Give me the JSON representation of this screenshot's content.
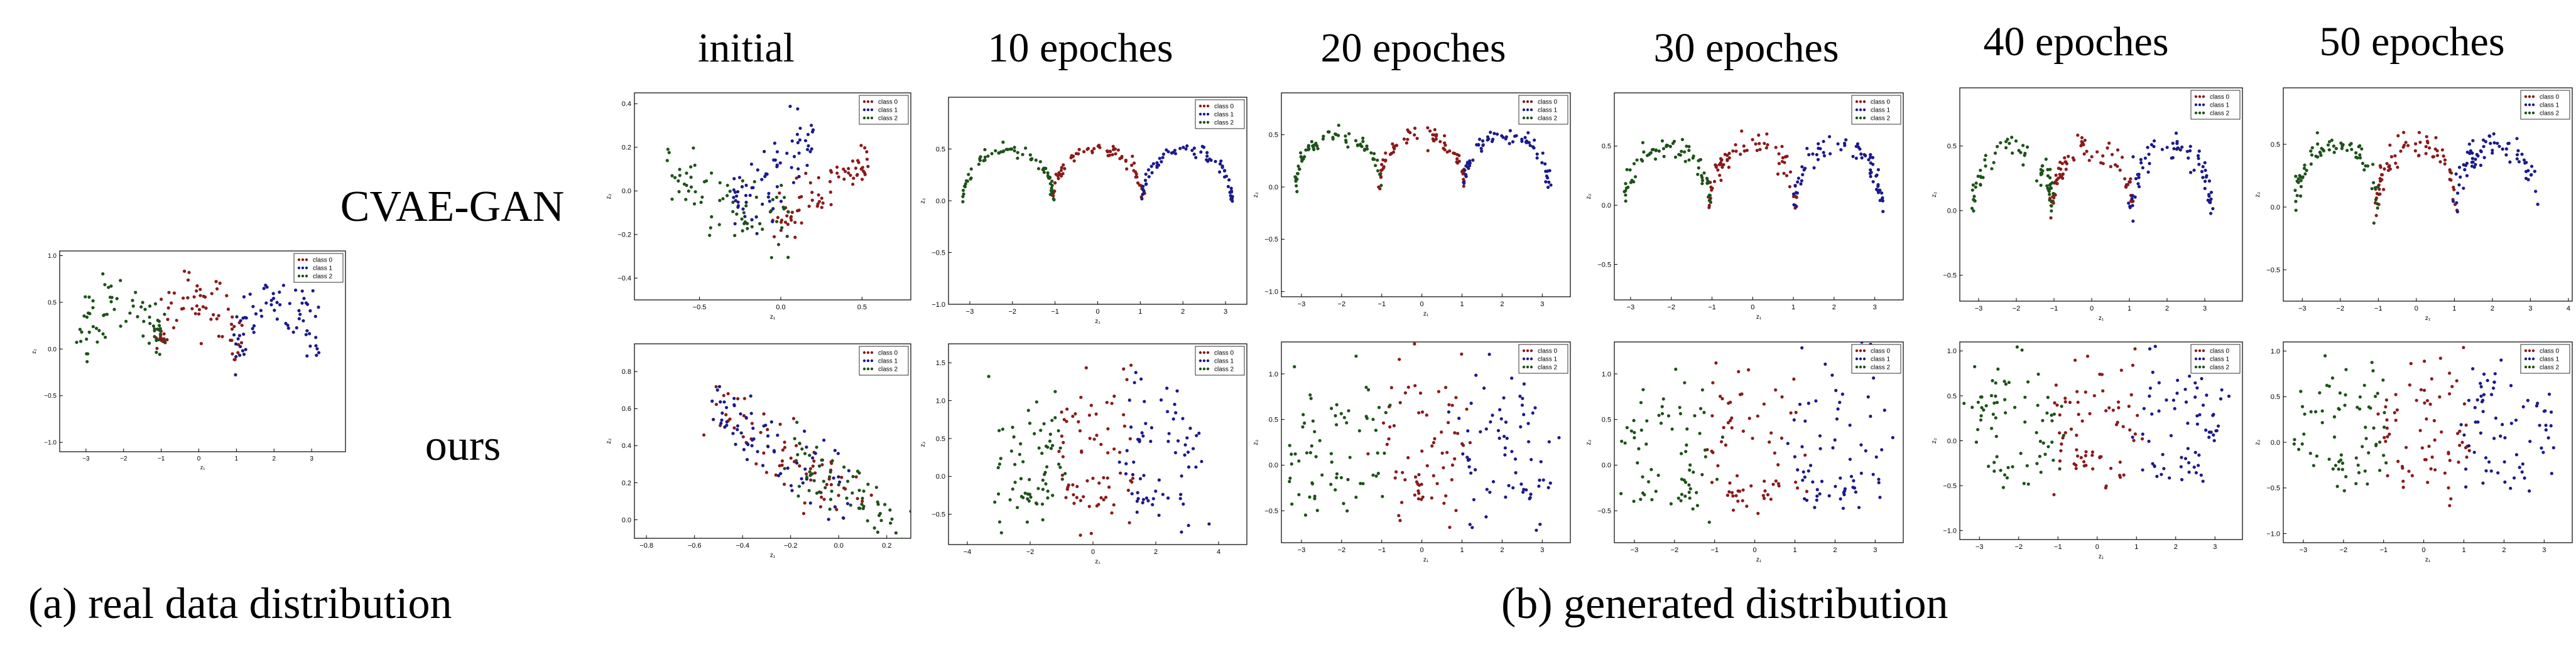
{
  "figure": {
    "epoch_titles": [
      "initial",
      "10 epoches",
      "20 epoches",
      "30 epoches",
      "40 epoches",
      "50 epoches"
    ],
    "row_labels": [
      "CVAE-GAN",
      "ours"
    ],
    "caption_a": "(a) real data distribution",
    "caption_b": "(b) generated distribution",
    "xlabel": "z₁",
    "ylabel": "z₂",
    "legend": [
      "class 0",
      "class 1",
      "class 2"
    ]
  },
  "colors": {
    "class0": "#8b1a1a",
    "class1": "#1a1a8c",
    "class2": "#1d5218"
  },
  "chart_data": [
    {
      "id": "real",
      "type": "scatter",
      "title": "",
      "pattern": "moons",
      "spread": 0.16,
      "xlim": [
        -3.7,
        3.9
      ],
      "ylim": [
        -1.1,
        1.05
      ],
      "xticks": [
        -3,
        -2,
        -1,
        0,
        1,
        2,
        3
      ],
      "xticklabels": [
        "−3",
        "−2",
        "−1",
        "0",
        "1",
        "2",
        "3"
      ],
      "yticks": [
        -1.0,
        -0.5,
        0.0,
        0.5,
        1.0
      ],
      "yticklabels": [
        "−1.0",
        "−0.5",
        "0.0",
        "0.5",
        "1.0"
      ]
    },
    {
      "id": "cvae-initial",
      "type": "scatter",
      "pattern": "fan",
      "spread": 0.05,
      "xlim": [
        -0.9,
        0.8
      ],
      "ylim": [
        -0.5,
        0.45
      ],
      "xticks": [
        -0.5,
        0.0,
        0.5
      ],
      "xticklabels": [
        "−0.5",
        "0.0",
        "0.5"
      ],
      "yticks": [
        -0.4,
        -0.2,
        0.0,
        0.2,
        0.4
      ],
      "yticklabels": [
        "−0.4",
        "−0.2",
        "0.0",
        "0.2",
        "0.4"
      ]
    },
    {
      "id": "cvae-10",
      "type": "scatter",
      "pattern": "moons",
      "spread": 0.03,
      "xlim": [
        -3.5,
        3.5
      ],
      "ylim": [
        -1.0,
        1.0
      ],
      "xticks": [
        -3,
        -2,
        -1,
        0,
        1,
        2,
        3
      ],
      "xticklabels": [
        "−3",
        "−2",
        "−1",
        "0",
        "1",
        "2",
        "3"
      ],
      "yticks": [
        -1.0,
        -0.5,
        0.0,
        0.5
      ],
      "yticklabels": [
        "−1.0",
        "−0.5",
        "0.0",
        "0.5"
      ]
    },
    {
      "id": "cvae-20",
      "type": "scatter",
      "pattern": "moons",
      "spread": 0.04,
      "xlim": [
        -3.5,
        3.7
      ],
      "ylim": [
        -1.05,
        0.9
      ],
      "xticks": [
        -3,
        -2,
        -1,
        0,
        1,
        2,
        3
      ],
      "xticklabels": [
        "−3",
        "−2",
        "−1",
        "0",
        "1",
        "2",
        "3"
      ],
      "yticks": [
        -1.0,
        -0.5,
        0.0,
        0.5
      ],
      "yticklabels": [
        "−1.0",
        "−0.5",
        "0.0",
        "0.5"
      ]
    },
    {
      "id": "cvae-30",
      "type": "scatter",
      "pattern": "moons",
      "spread": 0.05,
      "xlim": [
        -3.4,
        3.7
      ],
      "ylim": [
        -0.8,
        0.95
      ],
      "xticks": [
        -3,
        -2,
        -1,
        0,
        1,
        2,
        3
      ],
      "xticklabels": [
        "−3",
        "−2",
        "−1",
        "0",
        "1",
        "2",
        "3"
      ],
      "yticks": [
        -0.5,
        0.0,
        0.5
      ],
      "yticklabels": [
        "−0.5",
        "0.0",
        "0.5"
      ]
    },
    {
      "id": "cvae-40",
      "type": "scatter",
      "pattern": "moons",
      "spread": 0.06,
      "xlim": [
        -3.5,
        4.0
      ],
      "ylim": [
        -0.7,
        0.95
      ],
      "xticks": [
        -3,
        -2,
        -1,
        0,
        1,
        2,
        3
      ],
      "xticklabels": [
        "−3",
        "−2",
        "−1",
        "0",
        "1",
        "2",
        "3"
      ],
      "yticks": [
        -0.5,
        0.0,
        0.5
      ],
      "yticklabels": [
        "−0.5",
        "0.0",
        "0.5"
      ]
    },
    {
      "id": "cvae-50",
      "type": "scatter",
      "pattern": "moons",
      "spread": 0.06,
      "xlim": [
        -3.5,
        4.1
      ],
      "ylim": [
        -0.75,
        0.95
      ],
      "xticks": [
        -3,
        -2,
        -1,
        0,
        1,
        2,
        3,
        4
      ],
      "xticklabels": [
        "−3",
        "−2",
        "−1",
        "0",
        "1",
        "2",
        "3",
        "4"
      ],
      "yticks": [
        -0.5,
        0.0,
        0.5
      ],
      "yticklabels": [
        "−0.5",
        "0.0",
        "0.5"
      ]
    },
    {
      "id": "ours-initial",
      "type": "scatter",
      "pattern": "blob",
      "spread": 0.05,
      "xlim": [
        -0.85,
        0.3
      ],
      "ylim": [
        -0.1,
        0.95
      ],
      "xticks": [
        -0.8,
        -0.6,
        -0.4,
        -0.2,
        0.0,
        0.2
      ],
      "xticklabels": [
        "−0.8",
        "−0.6",
        "−0.4",
        "−0.2",
        "0.0",
        "0.2"
      ],
      "yticks": [
        0.0,
        0.2,
        0.4,
        0.6,
        0.8
      ],
      "yticklabels": [
        "0.0",
        "0.2",
        "0.4",
        "0.6",
        "0.8"
      ]
    },
    {
      "id": "ours-10",
      "type": "scatter",
      "pattern": "noisy",
      "spread": 0.33,
      "xlim": [
        -4.6,
        4.9
      ],
      "ylim": [
        -0.9,
        1.75
      ],
      "xticks": [
        -4,
        -2,
        0,
        2,
        4
      ],
      "xticklabels": [
        "−4",
        "−2",
        "0",
        "2",
        "4"
      ],
      "yticks": [
        -0.5,
        0.0,
        0.5,
        1.0,
        1.5
      ],
      "yticklabels": [
        "−0.5",
        "0.0",
        "0.5",
        "1.0",
        "1.5"
      ]
    },
    {
      "id": "ours-20",
      "type": "scatter",
      "pattern": "noisy",
      "spread": 0.3,
      "xlim": [
        -3.5,
        3.7
      ],
      "ylim": [
        -0.85,
        1.35
      ],
      "xticks": [
        -3,
        -2,
        -1,
        0,
        1,
        2,
        3
      ],
      "xticklabels": [
        "−3",
        "−2",
        "−1",
        "0",
        "1",
        "2",
        "3"
      ],
      "yticks": [
        -0.5,
        0.0,
        0.5,
        1.0
      ],
      "yticklabels": [
        "−0.5",
        "0.0",
        "0.5",
        "1.0"
      ]
    },
    {
      "id": "ours-30",
      "type": "scatter",
      "pattern": "noisy",
      "spread": 0.3,
      "xlim": [
        -3.5,
        3.7
      ],
      "ylim": [
        -0.85,
        1.35
      ],
      "xticks": [
        -3,
        -2,
        -1,
        0,
        1,
        2,
        3
      ],
      "xticklabels": [
        "−3",
        "−2",
        "−1",
        "0",
        "1",
        "2",
        "3"
      ],
      "yticks": [
        -0.5,
        0.0,
        0.5,
        1.0
      ],
      "yticklabels": [
        "−0.5",
        "0.0",
        "0.5",
        "1.0"
      ]
    },
    {
      "id": "ours-40",
      "type": "scatter",
      "pattern": "noisy",
      "spread": 0.24,
      "xlim": [
        -3.5,
        3.7
      ],
      "ylim": [
        -1.1,
        1.1
      ],
      "xticks": [
        -3,
        -2,
        -1,
        0,
        1,
        2,
        3
      ],
      "xticklabels": [
        "−3",
        "−2",
        "−1",
        "0",
        "1",
        "2",
        "3"
      ],
      "yticks": [
        -1.0,
        -0.5,
        0.0,
        0.5,
        1.0
      ],
      "yticklabels": [
        "−1.0",
        "−0.5",
        "0.0",
        "0.5",
        "1.0"
      ]
    },
    {
      "id": "ours-50",
      "type": "scatter",
      "pattern": "noisy",
      "spread": 0.2,
      "xlim": [
        -3.5,
        3.7
      ],
      "ylim": [
        -1.1,
        1.1
      ],
      "xticks": [
        -3,
        -2,
        -1,
        0,
        1,
        2,
        3
      ],
      "xticklabels": [
        "−3",
        "−2",
        "−1",
        "0",
        "1",
        "2",
        "3"
      ],
      "yticks": [
        -1.0,
        -0.5,
        0.0,
        0.5,
        1.0
      ],
      "yticklabels": [
        "−1.0",
        "−0.5",
        "0.0",
        "0.5",
        "1.0"
      ]
    }
  ]
}
